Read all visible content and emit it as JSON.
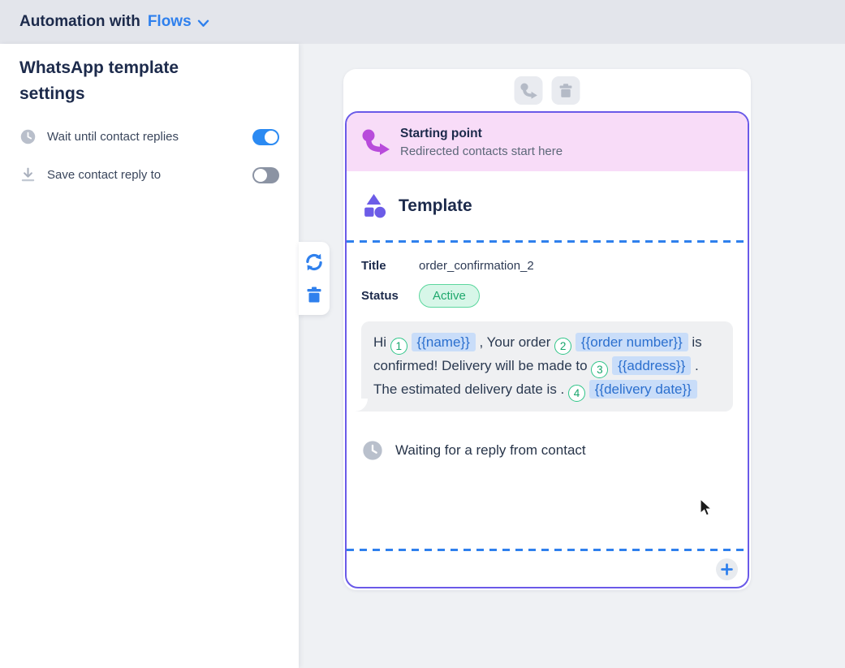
{
  "header": {
    "title_prefix": "Automation with",
    "flows_label": "Flows"
  },
  "sidebar": {
    "title": "WhatsApp template settings",
    "settings": [
      {
        "icon": "clock-icon",
        "label": "Wait until contact replies",
        "toggle_on": true
      },
      {
        "icon": "download-icon",
        "label": "Save contact reply to",
        "toggle_on": false
      }
    ]
  },
  "canvas": {
    "node_toolbar": {
      "icons": [
        "redirect-icon",
        "trash-icon"
      ]
    },
    "side_toolbar": {
      "icons": [
        "refresh-icon",
        "trash-icon"
      ]
    },
    "card": {
      "starting_point": {
        "title": "Starting point",
        "subtitle": "Redirected contacts start here"
      },
      "template": {
        "heading": "Template"
      },
      "title_field": {
        "label": "Title",
        "value": "order_confirmation_2"
      },
      "status_field": {
        "label": "Status",
        "value": "Active"
      },
      "message": {
        "parts": [
          {
            "t": "text",
            "v": "Hi"
          },
          {
            "t": "num",
            "v": "1"
          },
          {
            "t": "token",
            "v": "{{name}}"
          },
          {
            "t": "text",
            "v": ", Your order"
          },
          {
            "t": "num",
            "v": "2"
          },
          {
            "t": "token",
            "v": "{{order number}}"
          },
          {
            "t": "text",
            "v": "is confirmed! Delivery will be made to"
          },
          {
            "t": "num",
            "v": "3"
          },
          {
            "t": "token",
            "v": "{{address}}"
          },
          {
            "t": "text",
            "v": ". The estimated delivery date is ."
          },
          {
            "t": "num",
            "v": "4"
          },
          {
            "t": "token",
            "v": "{{delivery date}}"
          }
        ]
      },
      "waiting_text": "Waiting for a reply from contact",
      "add_label": "+"
    }
  },
  "colors": {
    "accent_blue": "#2F80ED",
    "node_border": "#6A5AE8",
    "template_icon_purple": "#6C5CE7",
    "starting_point_magenta": "#B84BDB",
    "starting_point_bg": "#F8DCF8",
    "active_green": "#1FA86D",
    "active_bg": "#D7F6E8",
    "token_bg": "#C9DDF9",
    "token_text": "#2B6FCE",
    "toggle_on": "#2B8AF2",
    "toggle_off": "#8B93A3"
  }
}
